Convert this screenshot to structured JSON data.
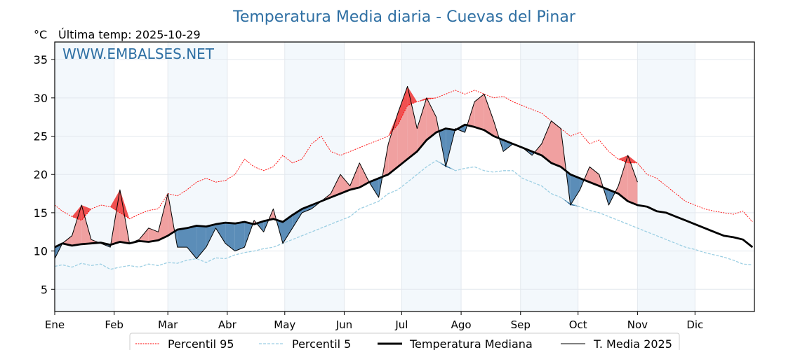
{
  "chart_data": {
    "type": "line",
    "title": "Temperatura Media diaria - Cuevas del Pinar",
    "unit_label": "°C",
    "last_update": "Última temp: 2025-10-29",
    "watermark": "WWW.EMBALSES.NET",
    "xlabel": "",
    "ylabel": "°C",
    "ylim": [
      2.1,
      37.3
    ],
    "xlim_days": [
      1,
      365
    ],
    "grid": true,
    "legend_position": "bottom",
    "y_ticks": [
      5,
      10,
      15,
      20,
      25,
      30,
      35
    ],
    "months": [
      "Ene",
      "Feb",
      "Mar",
      "Abr",
      "May",
      "Jun",
      "Jul",
      "Ago",
      "Sep",
      "Oct",
      "Nov",
      "Dic"
    ],
    "month_start_days": [
      1,
      32,
      60,
      91,
      121,
      152,
      182,
      213,
      244,
      274,
      305,
      335
    ],
    "colors": {
      "title": "#2e6fa3",
      "p95": "#ff0000",
      "p5": "#9ccfe3",
      "median": "#000000",
      "current": "#000000",
      "above_fill": "#f0a0a0",
      "above_p95_fill": "#f05050",
      "below_fill": "#5b8db8",
      "below_p5_fill": "#1f5a8c",
      "month_band": "#f3f8fc",
      "grid": "#e3e8ee"
    },
    "legend": [
      {
        "label": "Percentil 95",
        "style": "dotted-red"
      },
      {
        "label": "Percentil 5",
        "style": "dashed-lightblue"
      },
      {
        "label": "Temperatura Mediana",
        "style": "thick-black"
      },
      {
        "label": "T. Media 2025",
        "style": "thin-black"
      }
    ],
    "series": {
      "day": [
        1,
        5,
        10,
        15,
        20,
        25,
        30,
        35,
        40,
        45,
        50,
        55,
        60,
        65,
        70,
        75,
        80,
        85,
        90,
        95,
        100,
        105,
        110,
        115,
        120,
        125,
        130,
        135,
        140,
        145,
        150,
        155,
        160,
        165,
        170,
        175,
        180,
        185,
        190,
        195,
        200,
        205,
        210,
        215,
        220,
        225,
        230,
        235,
        240,
        245,
        250,
        255,
        260,
        265,
        270,
        275,
        280,
        285,
        290,
        295,
        300,
        305,
        310,
        315,
        320,
        325,
        330,
        335,
        340,
        345,
        350,
        355,
        360,
        365
      ],
      "p95": [
        16,
        15.2,
        14.5,
        14,
        15.5,
        16,
        15.8,
        15,
        14.2,
        14.8,
        15.3,
        15.5,
        17.5,
        17.2,
        18,
        19,
        19.5,
        19,
        19.2,
        20,
        22,
        21,
        20.5,
        21,
        22.5,
        21.5,
        22,
        24,
        25,
        23,
        22.5,
        23,
        23.5,
        24,
        24.5,
        25,
        26.5,
        29,
        29.5,
        29.8,
        30,
        30.5,
        31,
        30.5,
        31,
        30.5,
        30,
        30.2,
        29.5,
        29,
        28.5,
        28,
        27,
        26,
        25,
        25.5,
        24,
        24.5,
        23,
        22,
        21.5,
        21.5,
        20,
        19.5,
        18.5,
        17.5,
        16.5,
        16,
        15.5,
        15.2,
        15,
        14.8,
        15.2,
        13.8
      ],
      "p5": [
        8,
        8.2,
        7.9,
        8.4,
        8.1,
        8.3,
        7.6,
        7.9,
        8.1,
        7.9,
        8.3,
        8.1,
        8.5,
        8.4,
        8.8,
        9,
        8.5,
        9.1,
        9,
        9.5,
        9.8,
        10,
        10.3,
        10.5,
        11,
        11.5,
        12,
        12.5,
        13,
        13.5,
        14,
        14.5,
        15.5,
        16,
        16.5,
        17.5,
        18,
        19,
        20,
        21,
        21.8,
        21.2,
        20.5,
        20.8,
        21,
        20.5,
        20.3,
        20.5,
        20.5,
        19.5,
        19,
        18.5,
        17.5,
        17,
        16.2,
        15.8,
        15.3,
        15,
        14.5,
        14,
        13.5,
        13,
        12.5,
        12,
        11.5,
        11,
        10.5,
        10.2,
        9.8,
        9.5,
        9.2,
        8.8,
        8.3,
        8.2
      ],
      "median": [
        10.5,
        11,
        10.7,
        10.9,
        11,
        11.1,
        10.8,
        11.2,
        11,
        11.3,
        11.2,
        11.4,
        12,
        12.8,
        13,
        13.3,
        13.2,
        13.5,
        13.7,
        13.6,
        13.8,
        13.5,
        13.9,
        14.2,
        13.8,
        14.7,
        15.5,
        16,
        16.5,
        17,
        17.5,
        18,
        18.3,
        19,
        19.5,
        20,
        21,
        22,
        23,
        24.5,
        25.5,
        26,
        25.8,
        26.5,
        26.2,
        25.8,
        25,
        24.5,
        24,
        23.5,
        23,
        22.5,
        21.5,
        21,
        20,
        19.5,
        19,
        18.5,
        18,
        17.5,
        16.5,
        16,
        15.8,
        15.2,
        15,
        14.5,
        14,
        13.5,
        13,
        12.5,
        12,
        11.8,
        11.5,
        10.5
      ],
      "current": [
        9,
        11,
        12,
        16,
        11.5,
        11,
        10.5,
        18,
        11,
        11.5,
        13,
        12.5,
        17.5,
        10.5,
        10.5,
        9,
        10.5,
        13,
        11,
        10,
        10.5,
        14,
        12.5,
        15.5,
        11,
        13,
        15,
        15.5,
        16.5,
        17.5,
        20,
        18.5,
        21.5,
        19,
        17,
        24,
        28,
        31.5,
        26,
        30,
        27.5,
        21,
        26,
        25.5,
        29.5,
        30.5,
        27,
        23,
        24,
        23.5,
        22.5,
        24,
        27,
        26,
        16,
        18,
        21,
        20,
        16,
        18.5,
        22.5,
        19,
        null,
        null,
        null,
        null,
        null,
        null,
        null,
        null,
        null,
        null,
        null,
        null
      ]
    }
  }
}
